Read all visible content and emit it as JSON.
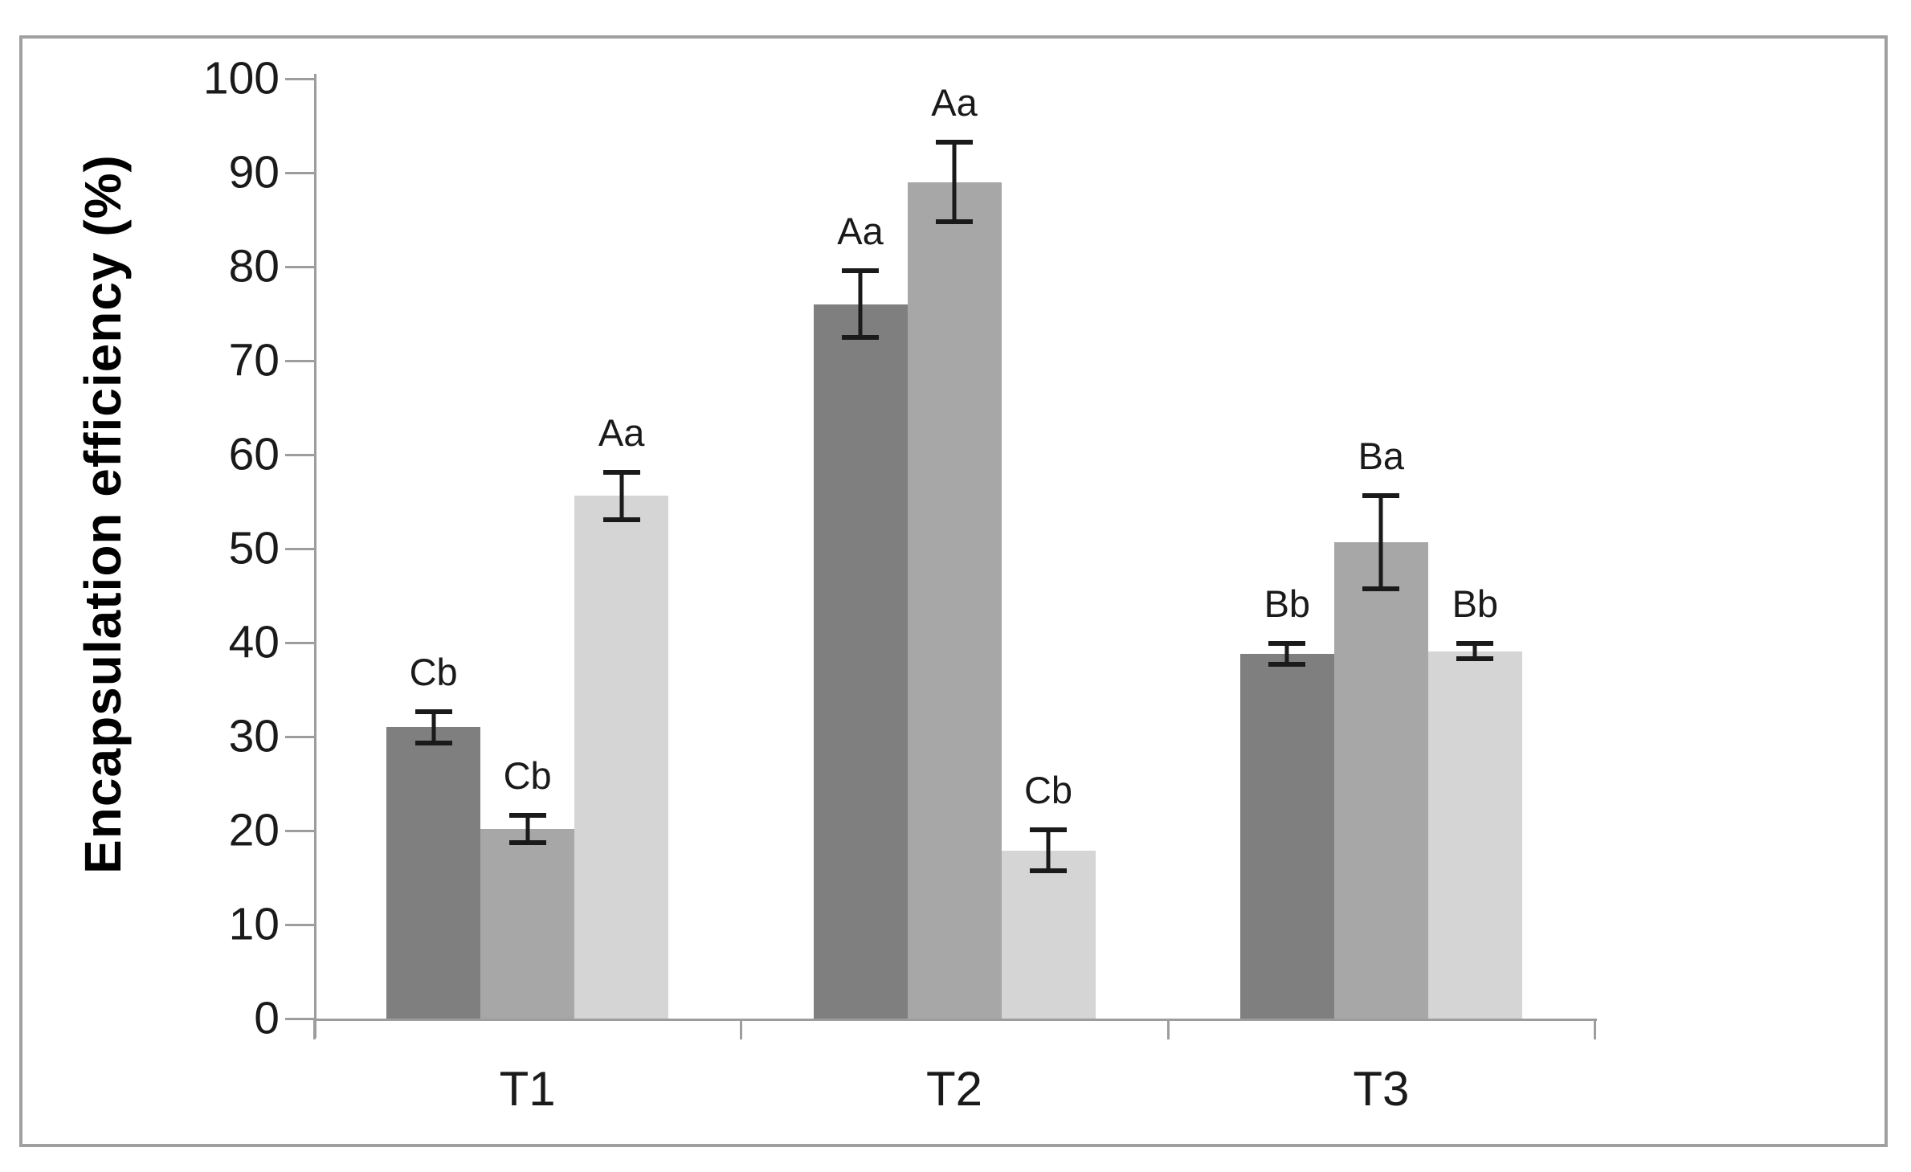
{
  "figure": {
    "background_color": "#ffffff",
    "frame_color": "#a0a0a0",
    "axis_color": "#9d9d9d",
    "text_color": "#1a1a1a"
  },
  "chart_data": {
    "type": "bar",
    "title": "",
    "xlabel": "",
    "ylabel": "Encapsulation efficiency (%)",
    "ylim": [
      0,
      100
    ],
    "ytick_interval": 10,
    "ytick_labels": [
      "0",
      "10",
      "20",
      "30",
      "40",
      "50",
      "60",
      "70",
      "80",
      "90",
      "100"
    ],
    "categories": [
      "T1",
      "T2",
      "T3"
    ],
    "grid": false,
    "legend_position": "none",
    "error_bars": true,
    "series": [
      {
        "name": "dark-gray-series",
        "color": "#7f7f7f",
        "values": [
          31.0,
          76.0,
          38.8
        ],
        "errors": [
          1.9,
          3.8,
          1.4
        ],
        "point_labels": [
          "Cb",
          "Aa",
          "Bb"
        ]
      },
      {
        "name": "medium-gray-series",
        "color": "#a7a7a7",
        "values": [
          20.2,
          89.0,
          50.7
        ],
        "errors": [
          1.7,
          4.5,
          5.2
        ],
        "point_labels": [
          "Cb",
          "Aa",
          "Ba"
        ]
      },
      {
        "name": "light-gray-series",
        "color": "#d5d5d5",
        "values": [
          55.6,
          17.9,
          39.1
        ],
        "errors": [
          2.8,
          2.4,
          1.1
        ],
        "point_labels": [
          "Aa",
          "Cb",
          "Bb"
        ]
      }
    ]
  }
}
